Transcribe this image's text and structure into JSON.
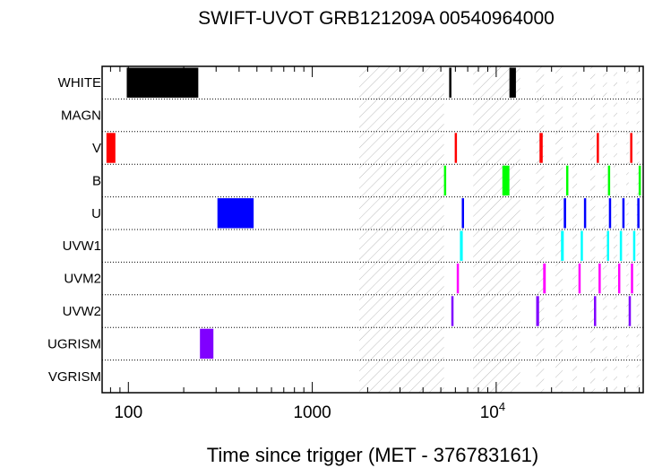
{
  "chart_data": {
    "type": "timeline",
    "title": "SWIFT-UVOT GRB121209A 00540964000",
    "xlabel": "Time since trigger (MET - 376783161)",
    "x_scale": "log",
    "xlim": [
      72,
      63000
    ],
    "xticks": [
      {
        "value": 100,
        "label": "100"
      },
      {
        "value": 1000,
        "label": "1000"
      },
      {
        "value": 10000,
        "label": "10",
        "exp": "4"
      }
    ],
    "rows": [
      "WHITE",
      "MAGN",
      "V",
      "B",
      "U",
      "UVW1",
      "UVM2",
      "UVW2",
      "UGRISM",
      "VGRISM"
    ],
    "gaps": [
      [
        1800,
        5200
      ],
      [
        7500,
        13500
      ],
      [
        16500,
        18200
      ],
      [
        21000,
        23000
      ],
      [
        26000,
        27500
      ],
      [
        32500,
        34500
      ],
      [
        38000,
        40000
      ],
      [
        43500,
        45500
      ],
      [
        51000,
        52500
      ],
      [
        58000,
        60000
      ]
    ],
    "series": [
      {
        "filter": "WHITE",
        "color": "#000000",
        "intervals": [
          [
            98,
            240
          ],
          [
            5550,
            5680
          ],
          [
            11800,
            12800
          ]
        ]
      },
      {
        "filter": "MAGN",
        "color": "#000000",
        "intervals": []
      },
      {
        "filter": "V",
        "color": "#ff0000",
        "intervals": [
          [
            76,
            85
          ],
          [
            5950,
            6100
          ],
          [
            17200,
            17900
          ],
          [
            35200,
            35900
          ],
          [
            53500,
            54500
          ]
        ]
      },
      {
        "filter": "B",
        "color": "#00ff00",
        "intervals": [
          [
            5200,
            5330
          ],
          [
            10800,
            11800
          ],
          [
            24000,
            24600
          ],
          [
            40500,
            41500
          ],
          [
            59500,
            61000
          ]
        ]
      },
      {
        "filter": "U",
        "color": "#0000ff",
        "intervals": [
          [
            305,
            480
          ],
          [
            6500,
            6680
          ],
          [
            23300,
            24000
          ],
          [
            30000,
            30700
          ],
          [
            41000,
            41700
          ],
          [
            48500,
            49200
          ],
          [
            58500,
            59200
          ]
        ]
      },
      {
        "filter": "UVW1",
        "color": "#00ffff",
        "intervals": [
          [
            6350,
            6580
          ],
          [
            22500,
            23300
          ],
          [
            28800,
            29500
          ],
          [
            40000,
            40700
          ],
          [
            47000,
            47800
          ],
          [
            55500,
            56300
          ]
        ]
      },
      {
        "filter": "UVM2",
        "color": "#ff00ff",
        "intervals": [
          [
            6100,
            6250
          ],
          [
            18000,
            18600
          ],
          [
            28000,
            28700
          ],
          [
            36000,
            36700
          ],
          [
            46000,
            46700
          ],
          [
            54000,
            54700
          ]
        ]
      },
      {
        "filter": "UVW2",
        "color": "#8000ff",
        "intervals": [
          [
            5700,
            5850
          ],
          [
            16500,
            17100
          ],
          [
            34000,
            34600
          ],
          [
            52500,
            53200
          ]
        ]
      },
      {
        "filter": "UGRISM",
        "color": "#8000ff",
        "intervals": [
          [
            245,
            290
          ]
        ]
      },
      {
        "filter": "VGRISM",
        "color": "#000000",
        "intervals": []
      }
    ]
  }
}
